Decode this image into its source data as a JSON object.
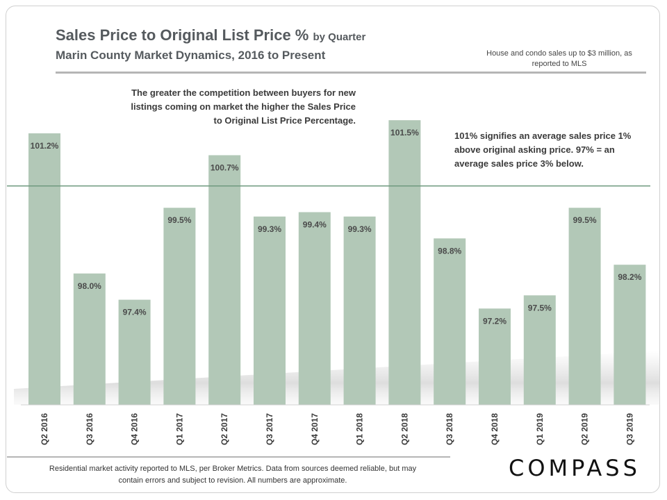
{
  "header": {
    "title_main": "Sales Price to Original List Price %",
    "title_suffix": "by Quarter",
    "subtitle": "Marin County Market Dynamics, 2016 to Present",
    "source_note": "House and condo sales up to $3 million, as reported to MLS"
  },
  "annotations": {
    "competition": "The greater the competition between buyers for new listings coming on market the higher the Sales Price to Original List Price Percentage.",
    "meaning": "101% signifies an average sales price 1% above original asking price. 97% = an average sales price 3% below."
  },
  "footer": {
    "disclaimer": "Residential market activity reported to MLS, per Broker Metrics. Data from sources deemed reliable, but may contain errors and subject to revision. All numbers are approximate.",
    "logo_text": "COMPASS"
  },
  "colors": {
    "bar": "#b2c8b7",
    "reference_line": "#6f9a7f",
    "title": "#555a5e"
  },
  "chart_data": {
    "type": "bar",
    "title": "Sales Price to Original List Price % by Quarter",
    "xlabel": "",
    "ylabel": "",
    "categories": [
      "Q2 2016",
      "Q3 2016",
      "Q4 2016",
      "Q1 2017",
      "Q2 2017",
      "Q3 2017",
      "Q4 2017",
      "Q1 2018",
      "Q2 2018",
      "Q3 2018",
      "Q4 2018",
      "Q1 2019",
      "Q2 2019",
      "Q3 2019"
    ],
    "values": [
      101.2,
      98.0,
      97.4,
      99.5,
      100.7,
      99.3,
      99.4,
      99.3,
      101.5,
      98.8,
      97.2,
      97.5,
      99.5,
      98.2
    ],
    "labels": [
      "101.2%",
      "98.0%",
      "97.4%",
      "99.5%",
      "100.7%",
      "99.3%",
      "99.4%",
      "99.3%",
      "101.5%",
      "98.8%",
      "97.2%",
      "97.5%",
      "99.5%",
      "98.2%"
    ],
    "ylim": [
      95.0,
      102.5
    ],
    "reference_value": 100.0,
    "grid": false
  }
}
